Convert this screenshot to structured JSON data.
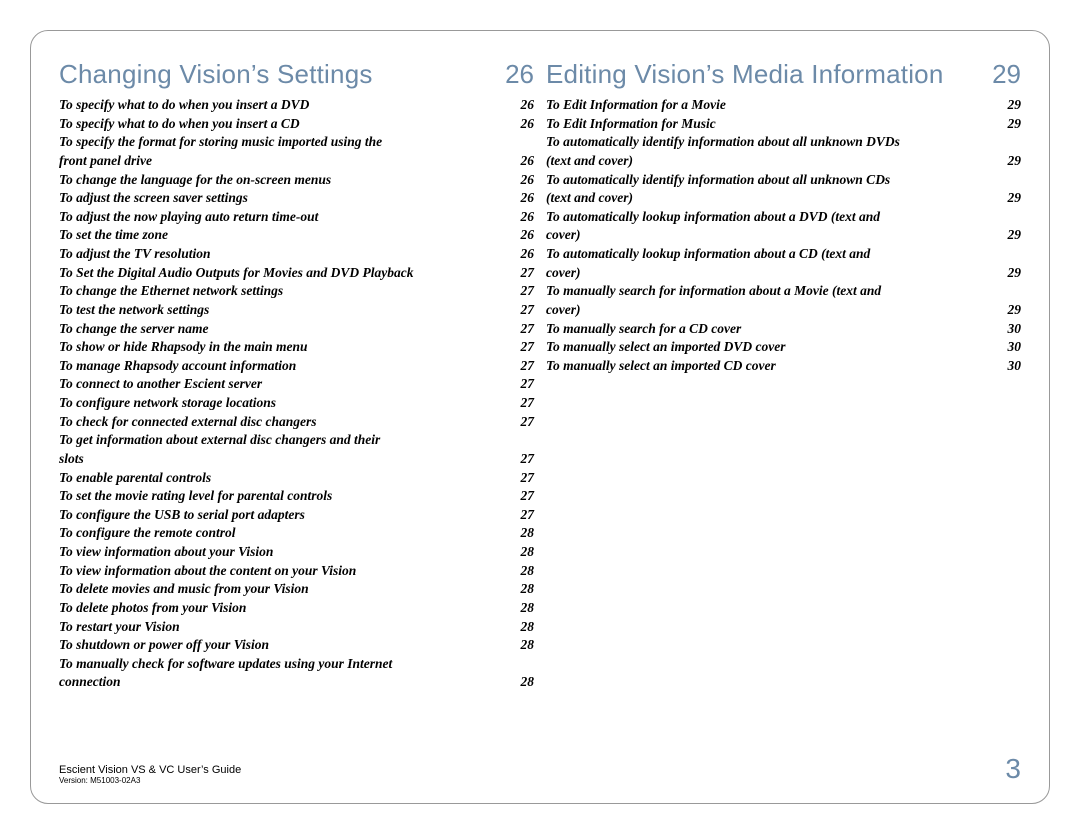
{
  "left": {
    "title": "Changing Vision’s Settings",
    "page": "26",
    "entries": [
      {
        "label": "To specify what to do when you insert a DVD",
        "page": "26"
      },
      {
        "label": "To specify what to do when you insert a CD",
        "page": "26"
      },
      {
        "label": "To specify the format for storing music imported using the front panel drive",
        "page": "26"
      },
      {
        "label": "To change the language for the on-screen menus",
        "page": "26"
      },
      {
        "label": "To adjust the screen saver settings",
        "page": "26"
      },
      {
        "label": "To adjust the now playing auto return time-out",
        "page": "26"
      },
      {
        "label": "To set the time zone",
        "page": "26"
      },
      {
        "label": "To adjust the TV resolution",
        "page": "26"
      },
      {
        "label": "To Set the Digital Audio Outputs for Movies and DVD Playback",
        "page": "27"
      },
      {
        "label": "To change the Ethernet network settings",
        "page": "27"
      },
      {
        "label": "To test the network settings",
        "page": "27"
      },
      {
        "label": "To change the server name",
        "page": "27"
      },
      {
        "label": "To show or hide Rhapsody in the main menu",
        "page": "27"
      },
      {
        "label": "To manage Rhapsody account information",
        "page": "27"
      },
      {
        "label": "To connect to another Escient server",
        "page": "27"
      },
      {
        "label": "To configure network storage locations",
        "page": "27"
      },
      {
        "label": "To check for connected external disc changers",
        "page": "27"
      },
      {
        "label": "To get information about external disc changers and their slots",
        "page": "27"
      },
      {
        "label": "To enable parental controls",
        "page": "27"
      },
      {
        "label": "To set the movie rating level for parental controls",
        "page": "27"
      },
      {
        "label": "To configure the USB to serial port adapters",
        "page": "27"
      },
      {
        "label": "To configure the remote control",
        "page": "28"
      },
      {
        "label": "To view information about your Vision",
        "page": "28"
      },
      {
        "label": "To view information about the content on your Vision",
        "page": "28"
      },
      {
        "label": "To delete movies and music from your Vision",
        "page": "28"
      },
      {
        "label": "To delete photos from your Vision",
        "page": "28"
      },
      {
        "label": "To restart your Vision",
        "page": "28"
      },
      {
        "label": "To shutdown or power off  your Vision",
        "page": "28"
      },
      {
        "label": "To manually check for software updates using your Internet connection",
        "page": "28"
      }
    ]
  },
  "right": {
    "title": "Editing Vision’s Media Information",
    "page": "29",
    "entries": [
      {
        "label": "To Edit Information for a Movie",
        "page": "29"
      },
      {
        "label": "To Edit Information for Music",
        "page": "29"
      },
      {
        "label": "To automatically identify information about all unknown DVDs (text and cover)",
        "page": "29"
      },
      {
        "label": "To automatically identify information about all unknown CDs (text and cover)",
        "page": "29"
      },
      {
        "label": "To automatically lookup information about a DVD (text and cover)",
        "page": "29"
      },
      {
        "label": "To automatically lookup information about a CD (text and cover)",
        "page": "29"
      },
      {
        "label": "To manually search for information about a Movie (text and cover)",
        "page": "29"
      },
      {
        "label": "To manually search for a CD cover",
        "page": "30"
      },
      {
        "label": "To manually select an imported DVD cover",
        "page": "30"
      },
      {
        "label": "To manually select an imported CD cover",
        "page": "30"
      }
    ]
  },
  "footer": {
    "guide": "Escient Vision VS & VC User’s Guide",
    "version": "Version: M51003-02A3",
    "page": "3"
  },
  "style": {
    "heading_color": "#6c8aa8",
    "text_color": "#000000",
    "border_color": "#999999",
    "background": "#ffffff"
  }
}
